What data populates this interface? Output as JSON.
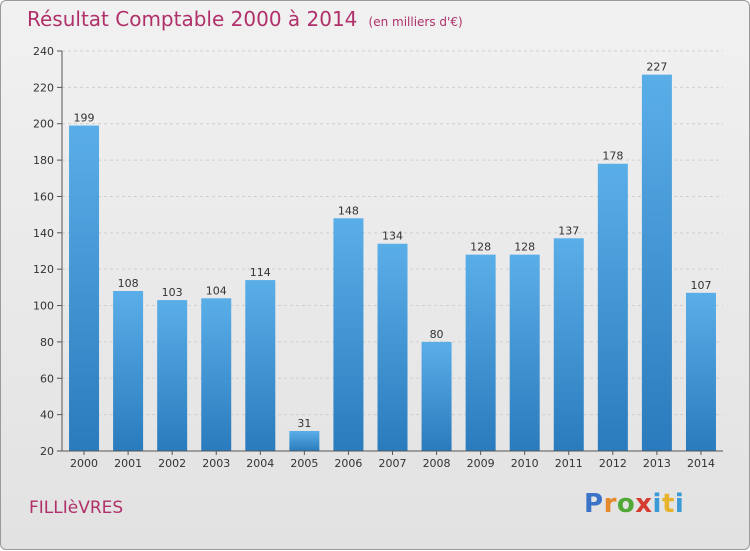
{
  "header": {
    "title": "Résultat Comptable 2000 à 2014",
    "subtitle": "(en milliers d'€)"
  },
  "footer": {
    "place": "FILLIèVRES",
    "logo_letters": [
      "P",
      "r",
      "o",
      "x",
      "i",
      "t",
      "i"
    ]
  },
  "colors": {
    "title": "#b0306a",
    "bar_top": "#5aaee8",
    "bar_bottom": "#2a7bbd",
    "grid": "#cfcfcf"
  },
  "chart_data": {
    "type": "bar",
    "categories": [
      "2000",
      "2001",
      "2002",
      "2003",
      "2004",
      "2005",
      "2006",
      "2007",
      "2008",
      "2009",
      "2010",
      "2011",
      "2012",
      "2013",
      "2014"
    ],
    "values": [
      199,
      108,
      103,
      104,
      114,
      31,
      148,
      134,
      80,
      128,
      128,
      137,
      178,
      227,
      107
    ],
    "title": "Résultat Comptable 2000 à 2014",
    "subtitle": "(en milliers d'€)",
    "ylim": [
      20,
      240
    ],
    "yticks": [
      20,
      40,
      60,
      80,
      100,
      120,
      140,
      160,
      180,
      200,
      220,
      240
    ],
    "grid": true,
    "legend": "none"
  }
}
